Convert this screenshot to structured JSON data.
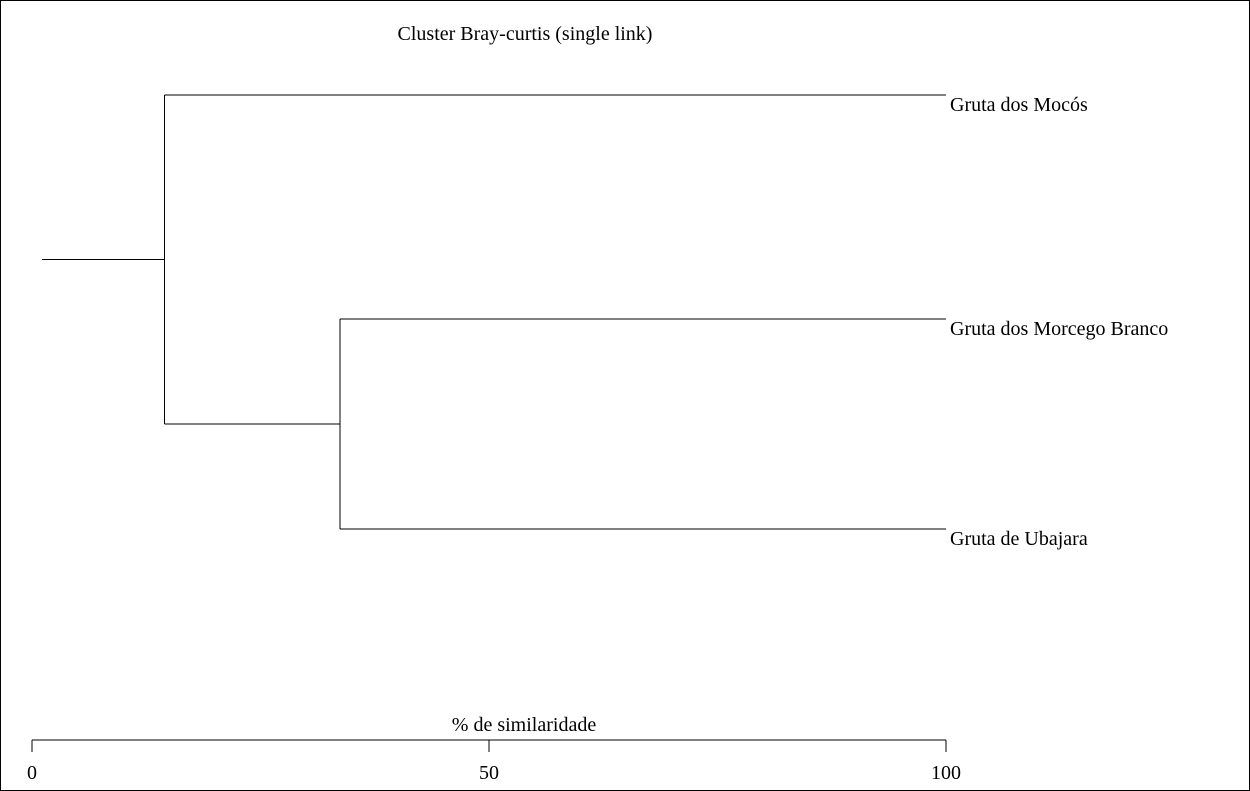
{
  "chart_data": {
    "type": "dendrogram",
    "title": "Cluster Bray-curtis (single link)",
    "xlabel": "% de similaridade",
    "xlim": [
      0,
      100
    ],
    "ticks": [
      0,
      50,
      100
    ],
    "leaves": [
      "Gruta dos Mocós",
      "Gruta dos Morcego Branco",
      "Gruta de Ubajara"
    ],
    "merges": [
      {
        "members": [
          "Gruta dos Morcego Branco",
          "Gruta de Ubajara"
        ],
        "similarity": 33.7
      },
      {
        "members": [
          "Gruta dos Mocós",
          "Gruta dos Morcego Branco",
          "Gruta de Ubajara"
        ],
        "similarity": 14.5
      }
    ]
  }
}
